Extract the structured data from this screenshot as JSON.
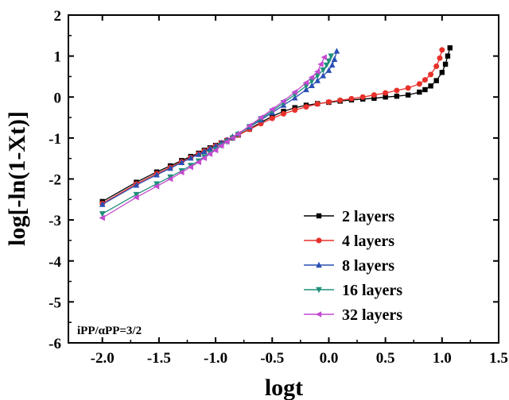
{
  "chart_data": {
    "type": "line",
    "xlabel": "logt",
    "ylabel": "log[-ln(1-Xt)]",
    "xlim": [
      -2.3,
      1.5
    ],
    "ylim": [
      -6,
      2
    ],
    "xticks": [
      -2.0,
      -1.5,
      -1.0,
      -0.5,
      0.0,
      0.5,
      1.0,
      1.5
    ],
    "xtick_labels": [
      "-2.0",
      "-1.5",
      "-1.0",
      "-0.5",
      "0.0",
      "0.5",
      "1.0",
      "1.5"
    ],
    "yticks": [
      -6,
      -5,
      -4,
      -3,
      -2,
      -1,
      0,
      1,
      2
    ],
    "ytick_labels": [
      "-6",
      "-5",
      "-4",
      "-3",
      "-2",
      "-1",
      "0",
      "1",
      "2"
    ],
    "grid": false,
    "legend_position": "bottom-right",
    "annotation": "iPP/αPP=3/2",
    "series": [
      {
        "name": "2 layers",
        "color": "#000000",
        "marker": "square",
        "x": [
          -2.0,
          -1.7,
          -1.52,
          -1.4,
          -1.3,
          -1.22,
          -1.15,
          -1.1,
          -1.05,
          -1.0,
          -0.95,
          -0.9,
          -0.85,
          -0.8,
          -0.7,
          -0.6,
          -0.5,
          -0.4,
          -0.3,
          -0.2,
          -0.1,
          0.0,
          0.1,
          0.2,
          0.3,
          0.4,
          0.5,
          0.6,
          0.7,
          0.8,
          0.85,
          0.9,
          0.95,
          1.0,
          1.03,
          1.05,
          1.07
        ],
        "y": [
          -2.55,
          -2.08,
          -1.83,
          -1.68,
          -1.55,
          -1.45,
          -1.37,
          -1.3,
          -1.24,
          -1.18,
          -1.12,
          -1.06,
          -1.0,
          -0.93,
          -0.78,
          -0.62,
          -0.47,
          -0.35,
          -0.26,
          -0.2,
          -0.16,
          -0.13,
          -0.1,
          -0.07,
          -0.05,
          -0.03,
          0.0,
          0.02,
          0.05,
          0.12,
          0.18,
          0.27,
          0.4,
          0.6,
          0.8,
          1.0,
          1.2
        ]
      },
      {
        "name": "4 layers",
        "color": "#e8302a",
        "marker": "circle",
        "x": [
          -2.0,
          -1.7,
          -1.52,
          -1.4,
          -1.3,
          -1.22,
          -1.15,
          -1.1,
          -1.05,
          -1.0,
          -0.95,
          -0.9,
          -0.85,
          -0.8,
          -0.7,
          -0.6,
          -0.5,
          -0.4,
          -0.3,
          -0.2,
          -0.1,
          0.0,
          0.1,
          0.2,
          0.3,
          0.4,
          0.5,
          0.6,
          0.7,
          0.8,
          0.85,
          0.9,
          0.95,
          0.98,
          1.0
        ],
        "y": [
          -2.6,
          -2.12,
          -1.87,
          -1.72,
          -1.58,
          -1.48,
          -1.39,
          -1.32,
          -1.26,
          -1.19,
          -1.12,
          -1.05,
          -0.99,
          -0.93,
          -0.79,
          -0.65,
          -0.52,
          -0.41,
          -0.32,
          -0.24,
          -0.17,
          -0.12,
          -0.08,
          -0.04,
          0.0,
          0.05,
          0.1,
          0.16,
          0.22,
          0.32,
          0.42,
          0.55,
          0.75,
          0.95,
          1.15
        ]
      },
      {
        "name": "8 layers",
        "color": "#2b4fb3",
        "marker": "triangle-up",
        "x": [
          -2.0,
          -1.7,
          -1.52,
          -1.4,
          -1.3,
          -1.22,
          -1.15,
          -1.1,
          -1.05,
          -1.0,
          -0.95,
          -0.9,
          -0.85,
          -0.8,
          -0.7,
          -0.6,
          -0.5,
          -0.4,
          -0.3,
          -0.2,
          -0.15,
          -0.1,
          -0.05,
          0.0,
          0.03,
          0.05,
          0.07
        ],
        "y": [
          -2.62,
          -2.15,
          -1.9,
          -1.74,
          -1.6,
          -1.49,
          -1.4,
          -1.33,
          -1.26,
          -1.2,
          -1.12,
          -1.05,
          -0.97,
          -0.9,
          -0.73,
          -0.56,
          -0.38,
          -0.2,
          -0.02,
          0.18,
          0.28,
          0.4,
          0.52,
          0.65,
          0.78,
          0.92,
          1.12
        ]
      },
      {
        "name": "16 layers",
        "color": "#1f8f7a",
        "marker": "triangle-down",
        "x": [
          -2.0,
          -1.7,
          -1.52,
          -1.4,
          -1.3,
          -1.22,
          -1.15,
          -1.1,
          -1.05,
          -1.0,
          -0.95,
          -0.9,
          -0.85,
          -0.8,
          -0.7,
          -0.6,
          -0.5,
          -0.4,
          -0.3,
          -0.2,
          -0.15,
          -0.1,
          -0.05,
          -0.02,
          0.0,
          0.02
        ],
        "y": [
          -2.85,
          -2.38,
          -2.12,
          -1.95,
          -1.8,
          -1.67,
          -1.56,
          -1.46,
          -1.37,
          -1.28,
          -1.18,
          -1.09,
          -1.0,
          -0.91,
          -0.72,
          -0.53,
          -0.34,
          -0.14,
          0.06,
          0.27,
          0.39,
          0.52,
          0.66,
          0.78,
          0.88,
          1.0
        ]
      },
      {
        "name": "32 layers",
        "color": "#c34ad0",
        "marker": "triangle-left",
        "x": [
          -2.0,
          -1.7,
          -1.52,
          -1.4,
          -1.3,
          -1.22,
          -1.15,
          -1.1,
          -1.05,
          -1.0,
          -0.95,
          -0.9,
          -0.85,
          -0.8,
          -0.7,
          -0.6,
          -0.5,
          -0.4,
          -0.3,
          -0.2,
          -0.15,
          -0.1,
          -0.07,
          -0.04
        ],
        "y": [
          -2.95,
          -2.45,
          -2.18,
          -2.0,
          -1.84,
          -1.71,
          -1.59,
          -1.49,
          -1.39,
          -1.3,
          -1.19,
          -1.09,
          -1.0,
          -0.9,
          -0.7,
          -0.5,
          -0.3,
          -0.1,
          0.12,
          0.35,
          0.48,
          0.62,
          0.8,
          0.97
        ]
      }
    ]
  }
}
